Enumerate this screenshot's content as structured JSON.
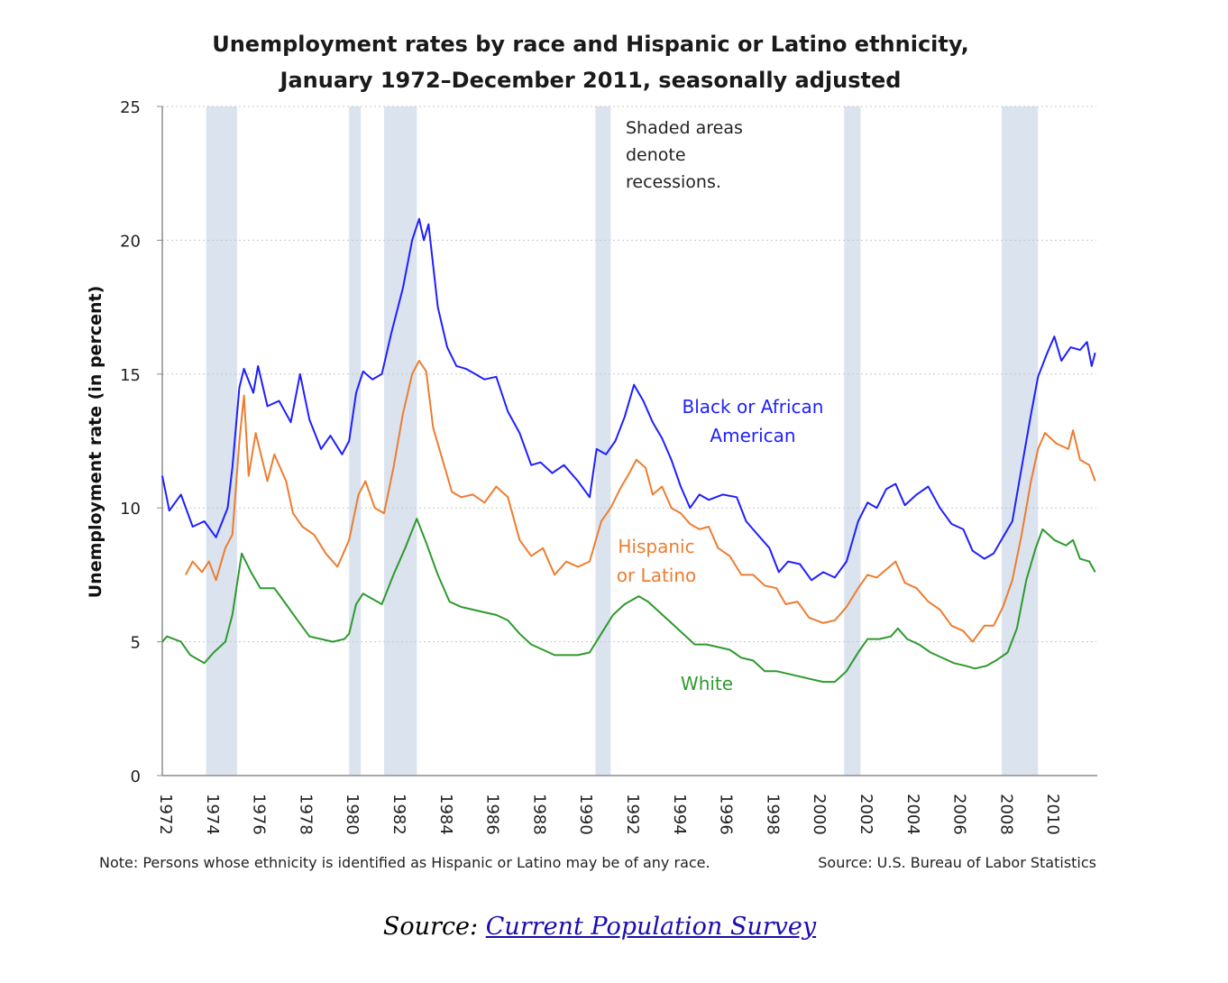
{
  "chart_data": {
    "type": "line",
    "title": [
      "Unemployment rates by race and Hispanic or Latino ethnicity,",
      "January 1972–December 2011, seasonally adjusted"
    ],
    "ylabel": "Unemployment rate (in percent)",
    "xlabel": "",
    "ylim": [
      0,
      25
    ],
    "yticks": [
      0,
      5,
      10,
      15,
      20,
      25
    ],
    "xlim": [
      1972,
      2012
    ],
    "xticks": [
      "1972",
      "1974",
      "1976",
      "1978",
      "1980",
      "1982",
      "1984",
      "1986",
      "1988",
      "1990",
      "1992",
      "1994",
      "1996",
      "1998",
      "2000",
      "2002",
      "2004",
      "2006",
      "2008",
      "2010"
    ],
    "grid": "horizontal dotted",
    "recessions": [
      [
        1973.88,
        1975.2
      ],
      [
        1980.0,
        1980.5
      ],
      [
        1981.5,
        1982.9
      ],
      [
        1990.55,
        1991.2
      ],
      [
        2001.2,
        2001.9
      ],
      [
        2007.95,
        2009.5
      ]
    ],
    "recession_color": "#dae3ee",
    "annotation": [
      "Shaded areas",
      "denote",
      "recessions."
    ],
    "series": [
      {
        "name": "Black or African American",
        "label_lines": [
          "Black or African",
          "American"
        ],
        "color": "#1f1fff",
        "x": [
          1972.0,
          1972.3,
          1972.8,
          1973.3,
          1973.8,
          1974.3,
          1974.8,
          1975.0,
          1975.3,
          1975.5,
          1975.9,
          1976.1,
          1976.5,
          1977.0,
          1977.5,
          1977.9,
          1978.3,
          1978.8,
          1979.2,
          1979.7,
          1980.0,
          1980.3,
          1980.6,
          1981.0,
          1981.4,
          1981.8,
          1982.3,
          1982.7,
          1983.0,
          1983.2,
          1983.4,
          1983.8,
          1984.2,
          1984.6,
          1985.0,
          1985.4,
          1985.8,
          1986.3,
          1986.8,
          1987.3,
          1987.8,
          1988.2,
          1988.7,
          1989.2,
          1989.8,
          1990.3,
          1990.6,
          1991.0,
          1991.4,
          1991.8,
          1992.2,
          1992.6,
          1993.0,
          1993.4,
          1993.8,
          1994.2,
          1994.6,
          1995.0,
          1995.4,
          1996.0,
          1996.6,
          1997.0,
          1997.5,
          1998.0,
          1998.4,
          1998.8,
          1999.3,
          1999.8,
          2000.3,
          2000.8,
          2001.3,
          2001.8,
          2002.2,
          2002.6,
          2003.0,
          2003.4,
          2003.8,
          2004.3,
          2004.8,
          2005.3,
          2005.8,
          2006.3,
          2006.7,
          2007.2,
          2007.6,
          2008.0,
          2008.4,
          2008.8,
          2009.2,
          2009.5,
          2009.9,
          2010.2,
          2010.5,
          2010.9,
          2011.3,
          2011.6,
          2011.8,
          2011.95
        ],
        "values": [
          11.2,
          9.9,
          10.5,
          9.3,
          9.5,
          8.9,
          10.0,
          11.5,
          14.5,
          15.2,
          14.3,
          15.3,
          13.8,
          14.0,
          13.2,
          15.0,
          13.3,
          12.2,
          12.7,
          12.0,
          12.5,
          14.3,
          15.1,
          14.8,
          15.0,
          16.5,
          18.2,
          20.0,
          20.8,
          20.0,
          20.6,
          17.5,
          16.0,
          15.3,
          15.2,
          15.0,
          14.8,
          14.9,
          13.6,
          12.8,
          11.6,
          11.7,
          11.3,
          11.6,
          11.0,
          10.4,
          12.2,
          12.0,
          12.5,
          13.4,
          14.6,
          14.0,
          13.2,
          12.6,
          11.8,
          10.8,
          10.0,
          10.5,
          10.3,
          10.5,
          10.4,
          9.5,
          9.0,
          8.5,
          7.6,
          8.0,
          7.9,
          7.3,
          7.6,
          7.4,
          8.0,
          9.5,
          10.2,
          10.0,
          10.7,
          10.9,
          10.1,
          10.5,
          10.8,
          10.0,
          9.4,
          9.2,
          8.4,
          8.1,
          8.3,
          8.9,
          9.5,
          11.5,
          13.5,
          14.9,
          15.8,
          16.4,
          15.5,
          16.0,
          15.9,
          16.2,
          15.3,
          15.8
        ]
      },
      {
        "name": "Hispanic or Latino",
        "label_lines": [
          "Hispanic",
          "or Latino"
        ],
        "color": "#ed7d31",
        "x": [
          1973.0,
          1973.3,
          1973.7,
          1974.0,
          1974.3,
          1974.7,
          1975.0,
          1975.3,
          1975.5,
          1975.7,
          1976.0,
          1976.5,
          1976.8,
          1977.3,
          1977.6,
          1978.0,
          1978.5,
          1979.0,
          1979.5,
          1980.0,
          1980.4,
          1980.7,
          1981.1,
          1981.5,
          1981.9,
          1982.3,
          1982.7,
          1983.0,
          1983.3,
          1983.6,
          1984.0,
          1984.4,
          1984.8,
          1985.3,
          1985.8,
          1986.3,
          1986.8,
          1987.3,
          1987.8,
          1988.3,
          1988.8,
          1989.3,
          1989.8,
          1990.3,
          1990.8,
          1991.2,
          1991.6,
          1992.0,
          1992.3,
          1992.7,
          1993.0,
          1993.4,
          1993.8,
          1994.2,
          1994.6,
          1995.0,
          1995.4,
          1995.8,
          1996.3,
          1996.8,
          1997.3,
          1997.8,
          1998.3,
          1998.7,
          1999.2,
          1999.7,
          2000.3,
          2000.8,
          2001.3,
          2001.8,
          2002.2,
          2002.6,
          2003.0,
          2003.4,
          2003.8,
          2004.3,
          2004.8,
          2005.3,
          2005.8,
          2006.3,
          2006.7,
          2007.2,
          2007.6,
          2008.0,
          2008.4,
          2008.8,
          2009.2,
          2009.5,
          2009.8,
          2010.3,
          2010.8,
          2011.0,
          2011.3,
          2011.7,
          2011.95
        ],
        "values": [
          7.5,
          8.0,
          7.6,
          8.0,
          7.3,
          8.5,
          9.0,
          12.5,
          14.2,
          11.2,
          12.8,
          11.0,
          12.0,
          11.0,
          9.8,
          9.3,
          9.0,
          8.3,
          7.8,
          8.8,
          10.5,
          11.0,
          10.0,
          9.8,
          11.5,
          13.5,
          15.0,
          15.5,
          15.1,
          13.0,
          11.8,
          10.6,
          10.4,
          10.5,
          10.2,
          10.8,
          10.4,
          8.8,
          8.2,
          8.5,
          7.5,
          8.0,
          7.8,
          8.0,
          9.5,
          10.0,
          10.7,
          11.3,
          11.8,
          11.5,
          10.5,
          10.8,
          10.0,
          9.8,
          9.4,
          9.2,
          9.3,
          8.5,
          8.2,
          7.5,
          7.5,
          7.1,
          7.0,
          6.4,
          6.5,
          5.9,
          5.7,
          5.8,
          6.3,
          7.0,
          7.5,
          7.4,
          7.7,
          8.0,
          7.2,
          7.0,
          6.5,
          6.2,
          5.6,
          5.4,
          5.0,
          5.6,
          5.6,
          6.3,
          7.3,
          9.0,
          11.0,
          12.2,
          12.8,
          12.4,
          12.2,
          12.9,
          11.8,
          11.6,
          11.0
        ]
      },
      {
        "name": "White",
        "label_lines": [
          "White"
        ],
        "color": "#2e9a2e",
        "x": [
          1972.0,
          1972.2,
          1972.8,
          1973.2,
          1973.8,
          1974.2,
          1974.7,
          1975.0,
          1975.4,
          1975.8,
          1976.2,
          1976.8,
          1977.3,
          1977.8,
          1978.3,
          1978.8,
          1979.3,
          1979.8,
          1980.0,
          1980.3,
          1980.6,
          1981.0,
          1981.4,
          1981.9,
          1982.4,
          1982.9,
          1983.3,
          1983.8,
          1984.3,
          1984.8,
          1985.3,
          1985.8,
          1986.3,
          1986.8,
          1987.3,
          1987.8,
          1988.3,
          1988.8,
          1989.3,
          1989.8,
          1990.3,
          1990.8,
          1991.3,
          1991.8,
          1992.4,
          1992.8,
          1993.3,
          1993.8,
          1994.3,
          1994.8,
          1995.3,
          1995.8,
          1996.3,
          1996.8,
          1997.3,
          1997.8,
          1998.3,
          1998.8,
          1999.3,
          1999.8,
          2000.3,
          2000.8,
          2001.3,
          2001.8,
          2002.2,
          2002.7,
          2003.2,
          2003.5,
          2003.9,
          2004.4,
          2004.9,
          2005.4,
          2005.9,
          2006.4,
          2006.8,
          2007.3,
          2007.7,
          2008.2,
          2008.6,
          2009.0,
          2009.4,
          2009.7,
          2010.2,
          2010.7,
          2011.0,
          2011.3,
          2011.7,
          2011.95
        ],
        "values": [
          5.0,
          5.2,
          5.0,
          4.5,
          4.2,
          4.6,
          5.0,
          6.0,
          8.3,
          7.6,
          7.0,
          7.0,
          6.4,
          5.8,
          5.2,
          5.1,
          5.0,
          5.1,
          5.3,
          6.4,
          6.8,
          6.6,
          6.4,
          7.5,
          8.5,
          9.6,
          8.7,
          7.5,
          6.5,
          6.3,
          6.2,
          6.1,
          6.0,
          5.8,
          5.3,
          4.9,
          4.7,
          4.5,
          4.5,
          4.5,
          4.6,
          5.3,
          6.0,
          6.4,
          6.7,
          6.5,
          6.1,
          5.7,
          5.3,
          4.9,
          4.9,
          4.8,
          4.7,
          4.4,
          4.3,
          3.9,
          3.9,
          3.8,
          3.7,
          3.6,
          3.5,
          3.5,
          3.9,
          4.6,
          5.1,
          5.1,
          5.2,
          5.5,
          5.1,
          4.9,
          4.6,
          4.4,
          4.2,
          4.1,
          4.0,
          4.1,
          4.3,
          4.6,
          5.5,
          7.3,
          8.5,
          9.2,
          8.8,
          8.6,
          8.8,
          8.1,
          8.0,
          7.6
        ]
      }
    ],
    "note": "Note: Persons whose ethnicity is identified as Hispanic or Latino may be of any race.",
    "chart_source": "Source: U.S. Bureau of Labor Statistics"
  },
  "footer": {
    "prefix": "Source: ",
    "link_text": "Current Population Survey"
  }
}
